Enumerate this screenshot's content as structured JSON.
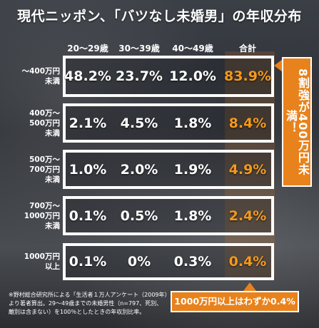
{
  "title": "現代ニッポン、「バツなし未婚男」の年収分布",
  "chart_data": {
    "type": "table",
    "title": "現代ニッポン、「バツなし未婚男」の年収分布",
    "columns": [
      "20～29歳",
      "30～39歳",
      "40～49歳",
      "合計"
    ],
    "rows": [
      {
        "label_lines": [
          "～400万円",
          "未満"
        ],
        "values": [
          "48.2%",
          "23.7%",
          "12.0%",
          "83.9%"
        ]
      },
      {
        "label_lines": [
          "400万～",
          "500万円",
          "未満"
        ],
        "values": [
          "2.1%",
          "4.5%",
          "1.8%",
          "8.4%"
        ]
      },
      {
        "label_lines": [
          "500万～",
          "700万円",
          "未満"
        ],
        "values": [
          "1.0%",
          "2.0%",
          "1.9%",
          "4.9%"
        ]
      },
      {
        "label_lines": [
          "700万～",
          "1000万円",
          "未満"
        ],
        "values": [
          "0.1%",
          "0.5%",
          "1.8%",
          "2.4%"
        ]
      },
      {
        "label_lines": [
          "1000万円",
          "以上"
        ],
        "values": [
          "0.1%",
          "0%",
          "0.3%",
          "0.4%"
        ]
      }
    ],
    "highlight_color": "#f39a1c"
  },
  "callouts": {
    "right": "8割強が400万円未満！",
    "bottom": "1000万円以上はわずか0.4%"
  },
  "footnote_lines": [
    "※野村総合研究所による「生活者１万人アンケート（2009年）",
    "より著者算出。29～49歳までの未婚男性（n=797、死別、",
    "離別は含まない）を100％としたときの年収別比率。"
  ]
}
